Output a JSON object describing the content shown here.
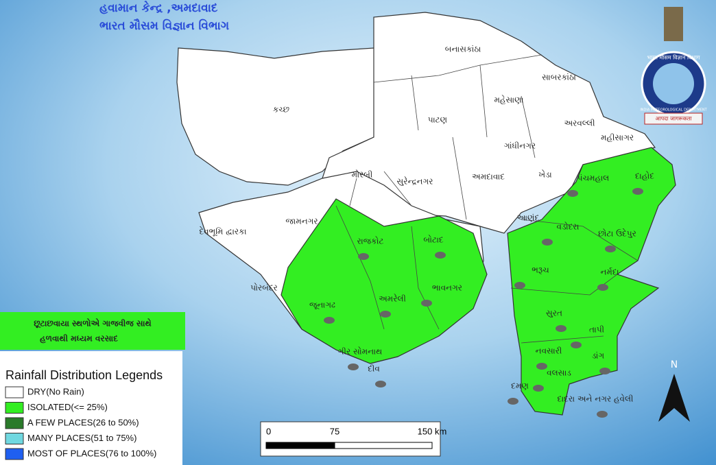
{
  "header": {
    "line1": "હવામાન કેન્દ્ર ,અમદાવાદ",
    "line2": "ભારત મૌસમ વિજ્ઞાન વિભાગ"
  },
  "logo": {
    "top": "भारत मौसम विज्ञान विभाग",
    "bottom": "INDIA METEOROLOGICAL DEPARTMENT",
    "motto": "आपदा जागरूकता"
  },
  "districts": [
    "કચ્છ",
    "બનાસકાંઠા",
    "પાટણ",
    "મહેસાણા",
    "સાબરકાંઠા",
    "અરવલ્લી",
    "મહીસાગર",
    "ગાંધીનગર",
    "અમદાવાદ",
    "ખેડા",
    "સુરેન્દ્રનગર",
    "મોરબી",
    "પંચમહાલ",
    "દાહોદ",
    "આણંદ",
    "વડોદરા",
    "છોટા ઉદેપુર",
    "જામનગર",
    "દેવભૂમિ દ્વારકા",
    "રાજકોટ",
    "બોટાદ",
    "ભાવનગર",
    "અમરેલી",
    "જૂનાગઢ",
    "પોરબંદર",
    "ગીર સોમનાથ",
    "દીવ",
    "ભરૂચ",
    "નર્મદા",
    "સુરત",
    "તાપી",
    "નવસારી",
    "ડાંગ",
    "વલસાડ",
    "દમણ",
    "દાદરા અને નગર હવેલી"
  ],
  "annotation": {
    "line1": "છૂટાછવાયા સ્થળોએ ગાજવીજ સાથે",
    "line2": "હળવાથી મધ્યમ વરસાદ"
  },
  "legend": {
    "title": "Rainfall Distribution Legends",
    "items": [
      {
        "label": "DRY(No Rain)",
        "color": "#ffffff"
      },
      {
        "label": "ISOLATED(<= 25%)",
        "color": "#33ee22"
      },
      {
        "label": "A FEW PLACES(26 to 50%)",
        "color": "#2a7a2a"
      },
      {
        "label": "MANY PLACES(51 to 75%)",
        "color": "#70d8e0"
      },
      {
        "label": "MOST OF PLACES(76 to 100%)",
        "color": "#1f5ff0"
      }
    ]
  },
  "scale_bar": [
    "0",
    "75",
    "150 km"
  ],
  "north": "N"
}
